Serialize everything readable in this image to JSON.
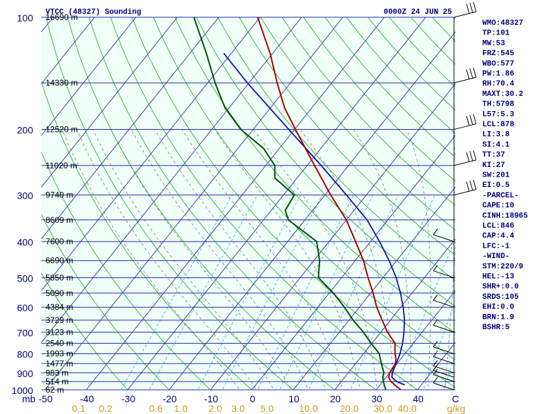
{
  "header": {
    "station": "VTCC (48327) Sounding",
    "time": "0000Z 24 JUN 25"
  },
  "colors": {
    "background": "#ffffff",
    "plot_bg": "#f0fff8",
    "isobar": "#2a2aa8",
    "isotherm": "#3a3aa0",
    "dry_adiabat": "#16a016",
    "moist_adiabat": "#7a7a7a",
    "mixing_ratio": "#2aa8e0",
    "temperature": "#aa0000",
    "dewpoint": "#005000",
    "parcel": "#1010aa",
    "text_dark": "#00007a",
    "text_label": "#000000",
    "mr_label": "#c8a020"
  },
  "chart_data": {
    "type": "skew-t",
    "title": "VTCC (48327) Sounding",
    "time": "0000Z 24 JUN 25",
    "pressure_levels": [
      100,
      200,
      300,
      400,
      500,
      600,
      700,
      800,
      900,
      1000
    ],
    "pressure_tick_labels": [
      "100",
      "200",
      "300",
      "400",
      "500",
      "600",
      "700",
      "800",
      "900",
      "1000"
    ],
    "pressure_unit": "mb",
    "height_labels": [
      {
        "p": 100,
        "label": "16690 m"
      },
      {
        "p": 150,
        "label": "14330 m"
      },
      {
        "p": 200,
        "label": "12520 m"
      },
      {
        "p": 250,
        "label": "11020 m"
      },
      {
        "p": 300,
        "label": "9740 m"
      },
      {
        "p": 350,
        "label": "8609 m"
      },
      {
        "p": 400,
        "label": "7600 m"
      },
      {
        "p": 450,
        "label": "6690 m"
      },
      {
        "p": 500,
        "label": "5850 m"
      },
      {
        "p": 550,
        "label": "5090 m"
      },
      {
        "p": 600,
        "label": "4384 m"
      },
      {
        "p": 650,
        "label": "3729 m"
      },
      {
        "p": 700,
        "label": "3123 m"
      },
      {
        "p": 750,
        "label": "2540 m"
      },
      {
        "p": 800,
        "label": "1993 m"
      },
      {
        "p": 850,
        "label": "1477 m"
      },
      {
        "p": 900,
        "label": "983 m"
      },
      {
        "p": 950,
        "label": "514 m"
      },
      {
        "p": 1000,
        "label": "62 m"
      }
    ],
    "temperature_ticks": [
      -50,
      -40,
      -30,
      -20,
      -10,
      0,
      10,
      20,
      30,
      40
    ],
    "temperature_tick_labels": [
      "-50",
      "-40",
      "-30",
      "-20",
      "-10",
      "0",
      "10",
      "20",
      "30",
      "40"
    ],
    "temperature_axis_end_label": "C",
    "mixing_ratio_labels": [
      "0.1",
      "0.2",
      "0.6",
      "1.0",
      "2.0",
      "3.0",
      "5.0",
      "10.0",
      "20.0",
      "30.0",
      "40.0"
    ],
    "mixing_ratio_unit": "g/kg",
    "temperature_profile": [
      {
        "p": 1000,
        "t": 26.0
      },
      {
        "p": 975,
        "t": 24.0
      },
      {
        "p": 950,
        "t": 22.0
      },
      {
        "p": 925,
        "t": 20.6
      },
      {
        "p": 900,
        "t": 20.0
      },
      {
        "p": 875,
        "t": 19.8
      },
      {
        "p": 850,
        "t": 19.6
      },
      {
        "p": 825,
        "t": 18.8
      },
      {
        "p": 800,
        "t": 17.6
      },
      {
        "p": 775,
        "t": 16.6
      },
      {
        "p": 750,
        "t": 15.6
      },
      {
        "p": 700,
        "t": 11.6
      },
      {
        "p": 650,
        "t": 8.0
      },
      {
        "p": 600,
        "t": 4.2
      },
      {
        "p": 550,
        "t": 0.6
      },
      {
        "p": 500,
        "t": -3.6
      },
      {
        "p": 450,
        "t": -8.0
      },
      {
        "p": 400,
        "t": -13.6
      },
      {
        "p": 350,
        "t": -20.0
      },
      {
        "p": 300,
        "t": -28.6
      },
      {
        "p": 250,
        "t": -38.2
      },
      {
        "p": 200,
        "t": -49.8
      },
      {
        "p": 175,
        "t": -56.6
      },
      {
        "p": 150,
        "t": -63.2
      },
      {
        "p": 125,
        "t": -70.6
      },
      {
        "p": 100,
        "t": -80.6
      }
    ],
    "dewpoint_profile": [
      {
        "p": 1000,
        "t": 22.4
      },
      {
        "p": 975,
        "t": 21.2
      },
      {
        "p": 950,
        "t": 20.2
      },
      {
        "p": 925,
        "t": 19.2
      },
      {
        "p": 900,
        "t": 18.6
      },
      {
        "p": 850,
        "t": 16.2
      },
      {
        "p": 800,
        "t": 13.8
      },
      {
        "p": 750,
        "t": 9.8
      },
      {
        "p": 700,
        "t": 5.8
      },
      {
        "p": 650,
        "t": 1.0
      },
      {
        "p": 600,
        "t": -3.6
      },
      {
        "p": 550,
        "t": -9.0
      },
      {
        "p": 500,
        "t": -15.6
      },
      {
        "p": 450,
        "t": -18.6
      },
      {
        "p": 400,
        "t": -23.0
      },
      {
        "p": 350,
        "t": -34.0
      },
      {
        "p": 330,
        "t": -36.6
      },
      {
        "p": 300,
        "t": -37.4
      },
      {
        "p": 270,
        "t": -45.4
      },
      {
        "p": 250,
        "t": -47.8
      },
      {
        "p": 225,
        "t": -53.8
      },
      {
        "p": 200,
        "t": -63.0
      },
      {
        "p": 175,
        "t": -71.0
      },
      {
        "p": 150,
        "t": -78.2
      },
      {
        "p": 125,
        "t": -86.0
      },
      {
        "p": 100,
        "t": -96.0
      }
    ],
    "parcel_profile": [
      {
        "p": 970,
        "t": 26.0
      },
      {
        "p": 950,
        "t": 23.4
      },
      {
        "p": 925,
        "t": 21.4
      },
      {
        "p": 900,
        "t": 20.6
      },
      {
        "p": 850,
        "t": 19.8
      },
      {
        "p": 800,
        "t": 18.8
      },
      {
        "p": 750,
        "t": 17.4
      },
      {
        "p": 700,
        "t": 15.6
      },
      {
        "p": 650,
        "t": 13.4
      },
      {
        "p": 600,
        "t": 10.6
      },
      {
        "p": 550,
        "t": 7.2
      },
      {
        "p": 500,
        "t": 3.2
      },
      {
        "p": 450,
        "t": -1.8
      },
      {
        "p": 400,
        "t": -7.8
      },
      {
        "p": 350,
        "t": -15.0
      },
      {
        "p": 300,
        "t": -24.8
      },
      {
        "p": 250,
        "t": -36.6
      },
      {
        "p": 200,
        "t": -51.4
      },
      {
        "p": 150,
        "t": -70.4
      },
      {
        "p": 125,
        "t": -81.8
      }
    ],
    "wind_barbs": [
      {
        "p": 100
      },
      {
        "p": 150
      },
      {
        "p": 200
      },
      {
        "p": 250
      },
      {
        "p": 300
      },
      {
        "p": 400
      },
      {
        "p": 500
      },
      {
        "p": 600
      },
      {
        "p": 700
      },
      {
        "p": 800
      },
      {
        "p": 850
      },
      {
        "p": 900
      },
      {
        "p": 925
      },
      {
        "p": 950
      },
      {
        "p": 1000
      }
    ],
    "indices": [
      "WMO:48327",
      "TP:101",
      "MW:53",
      "FRZ:545",
      "WBO:577",
      "PW:1.86",
      "RH:70.4",
      "MAXT:30.2",
      "TH:5798",
      "L57:5.3",
      "LCL:878",
      "LI:3.8",
      "SI:4.1",
      "TT:37",
      "KI:27",
      "SW:201",
      "EI:0.5",
      "-PARCEL-",
      "CAPE:10",
      "CINH:18965",
      "LCL:846",
      "CAP:4.4",
      "LFC:-1",
      "-WIND-",
      "STM:220/9",
      "HEL:-13",
      "SHR+:0.0",
      "SRDS:105",
      "EHI:0.0",
      "BRN:1.9",
      "BSHR:5"
    ]
  }
}
